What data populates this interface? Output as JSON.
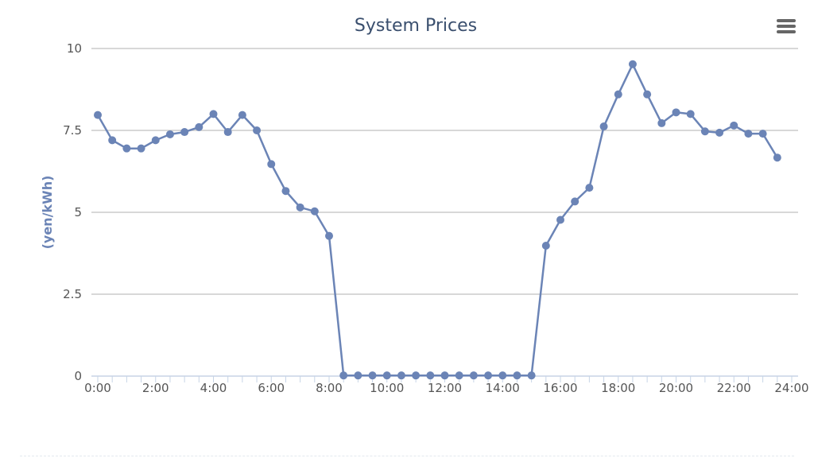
{
  "chart_data": {
    "type": "line",
    "title": "System Prices",
    "xlabel": "",
    "ylabel": "(yen/kWh)",
    "ylim": [
      0,
      10
    ],
    "yticks": [
      "0",
      "2.5",
      "5",
      "7.5",
      "10"
    ],
    "xticks": [
      "0:00",
      "2:00",
      "4:00",
      "6:00",
      "8:00",
      "10:00",
      "12:00",
      "14:00",
      "16:00",
      "18:00",
      "20:00",
      "22:00",
      "24:00"
    ],
    "xlim": [
      0,
      24
    ],
    "grid": true,
    "legend": "none",
    "color": "#6b84b6",
    "series": [
      {
        "x": [
          0,
          0.5,
          1,
          1.5,
          2,
          2.5,
          3,
          3.5,
          4,
          4.5,
          5,
          5.5,
          6,
          6.5,
          7,
          7.5,
          8,
          8.5,
          9,
          9.5,
          10,
          10.5,
          11,
          11.5,
          12,
          12.5,
          13,
          13.5,
          14,
          14.5,
          15,
          15.5,
          16,
          16.5,
          17,
          17.5,
          18,
          18.5,
          19,
          19.5,
          20,
          20.5,
          21,
          21.5,
          22,
          22.5,
          23,
          23.5
        ],
        "values": [
          7.97,
          7.2,
          6.95,
          6.95,
          7.2,
          7.38,
          7.45,
          7.6,
          8.0,
          7.45,
          7.97,
          7.5,
          6.47,
          5.65,
          5.15,
          5.03,
          4.28,
          0.02,
          0.02,
          0.02,
          0.02,
          0.02,
          0.02,
          0.02,
          0.02,
          0.02,
          0.02,
          0.02,
          0.02,
          0.02,
          0.02,
          3.98,
          4.77,
          5.33,
          5.75,
          7.62,
          8.6,
          9.52,
          8.6,
          7.72,
          8.05,
          8.0,
          7.47,
          7.43,
          7.65,
          7.4,
          7.4,
          6.67
        ]
      }
    ]
  },
  "toolbar": {
    "menu_icon": "hamburger-menu-icon"
  }
}
